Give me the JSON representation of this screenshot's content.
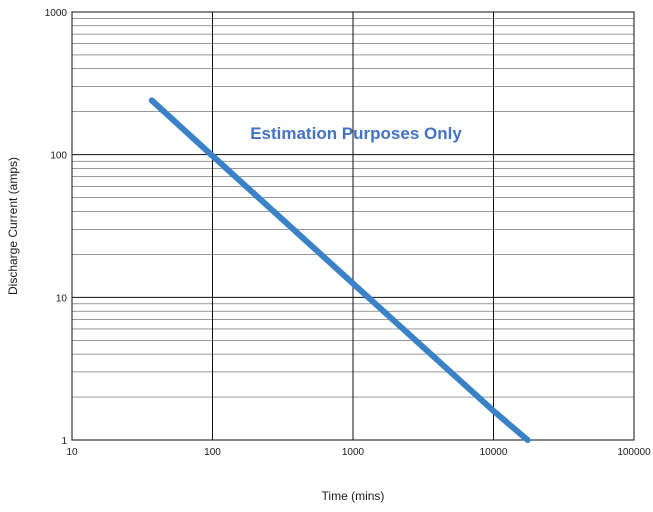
{
  "chart_data": {
    "type": "line",
    "title": "",
    "xlabel": "Time (mins)",
    "ylabel": "Discharge Current (amps)",
    "x_scale": "log",
    "y_scale": "log",
    "xlim": [
      10,
      100000
    ],
    "ylim": [
      1,
      1000
    ],
    "x_ticks": [
      "10",
      "100",
      "1000",
      "10000",
      "100000"
    ],
    "y_ticks": [
      "1",
      "10",
      "100",
      "1000"
    ],
    "grid": true,
    "annotation": "Estimation Purposes Only",
    "colors": {
      "line": "#3a82c6",
      "annotation": "#4472c4",
      "grid": "#333333"
    },
    "series": [
      {
        "x": [
          37,
          100,
          1000,
          10000,
          17500
        ],
        "y": [
          240,
          98,
          12.5,
          1.6,
          1
        ]
      }
    ]
  }
}
